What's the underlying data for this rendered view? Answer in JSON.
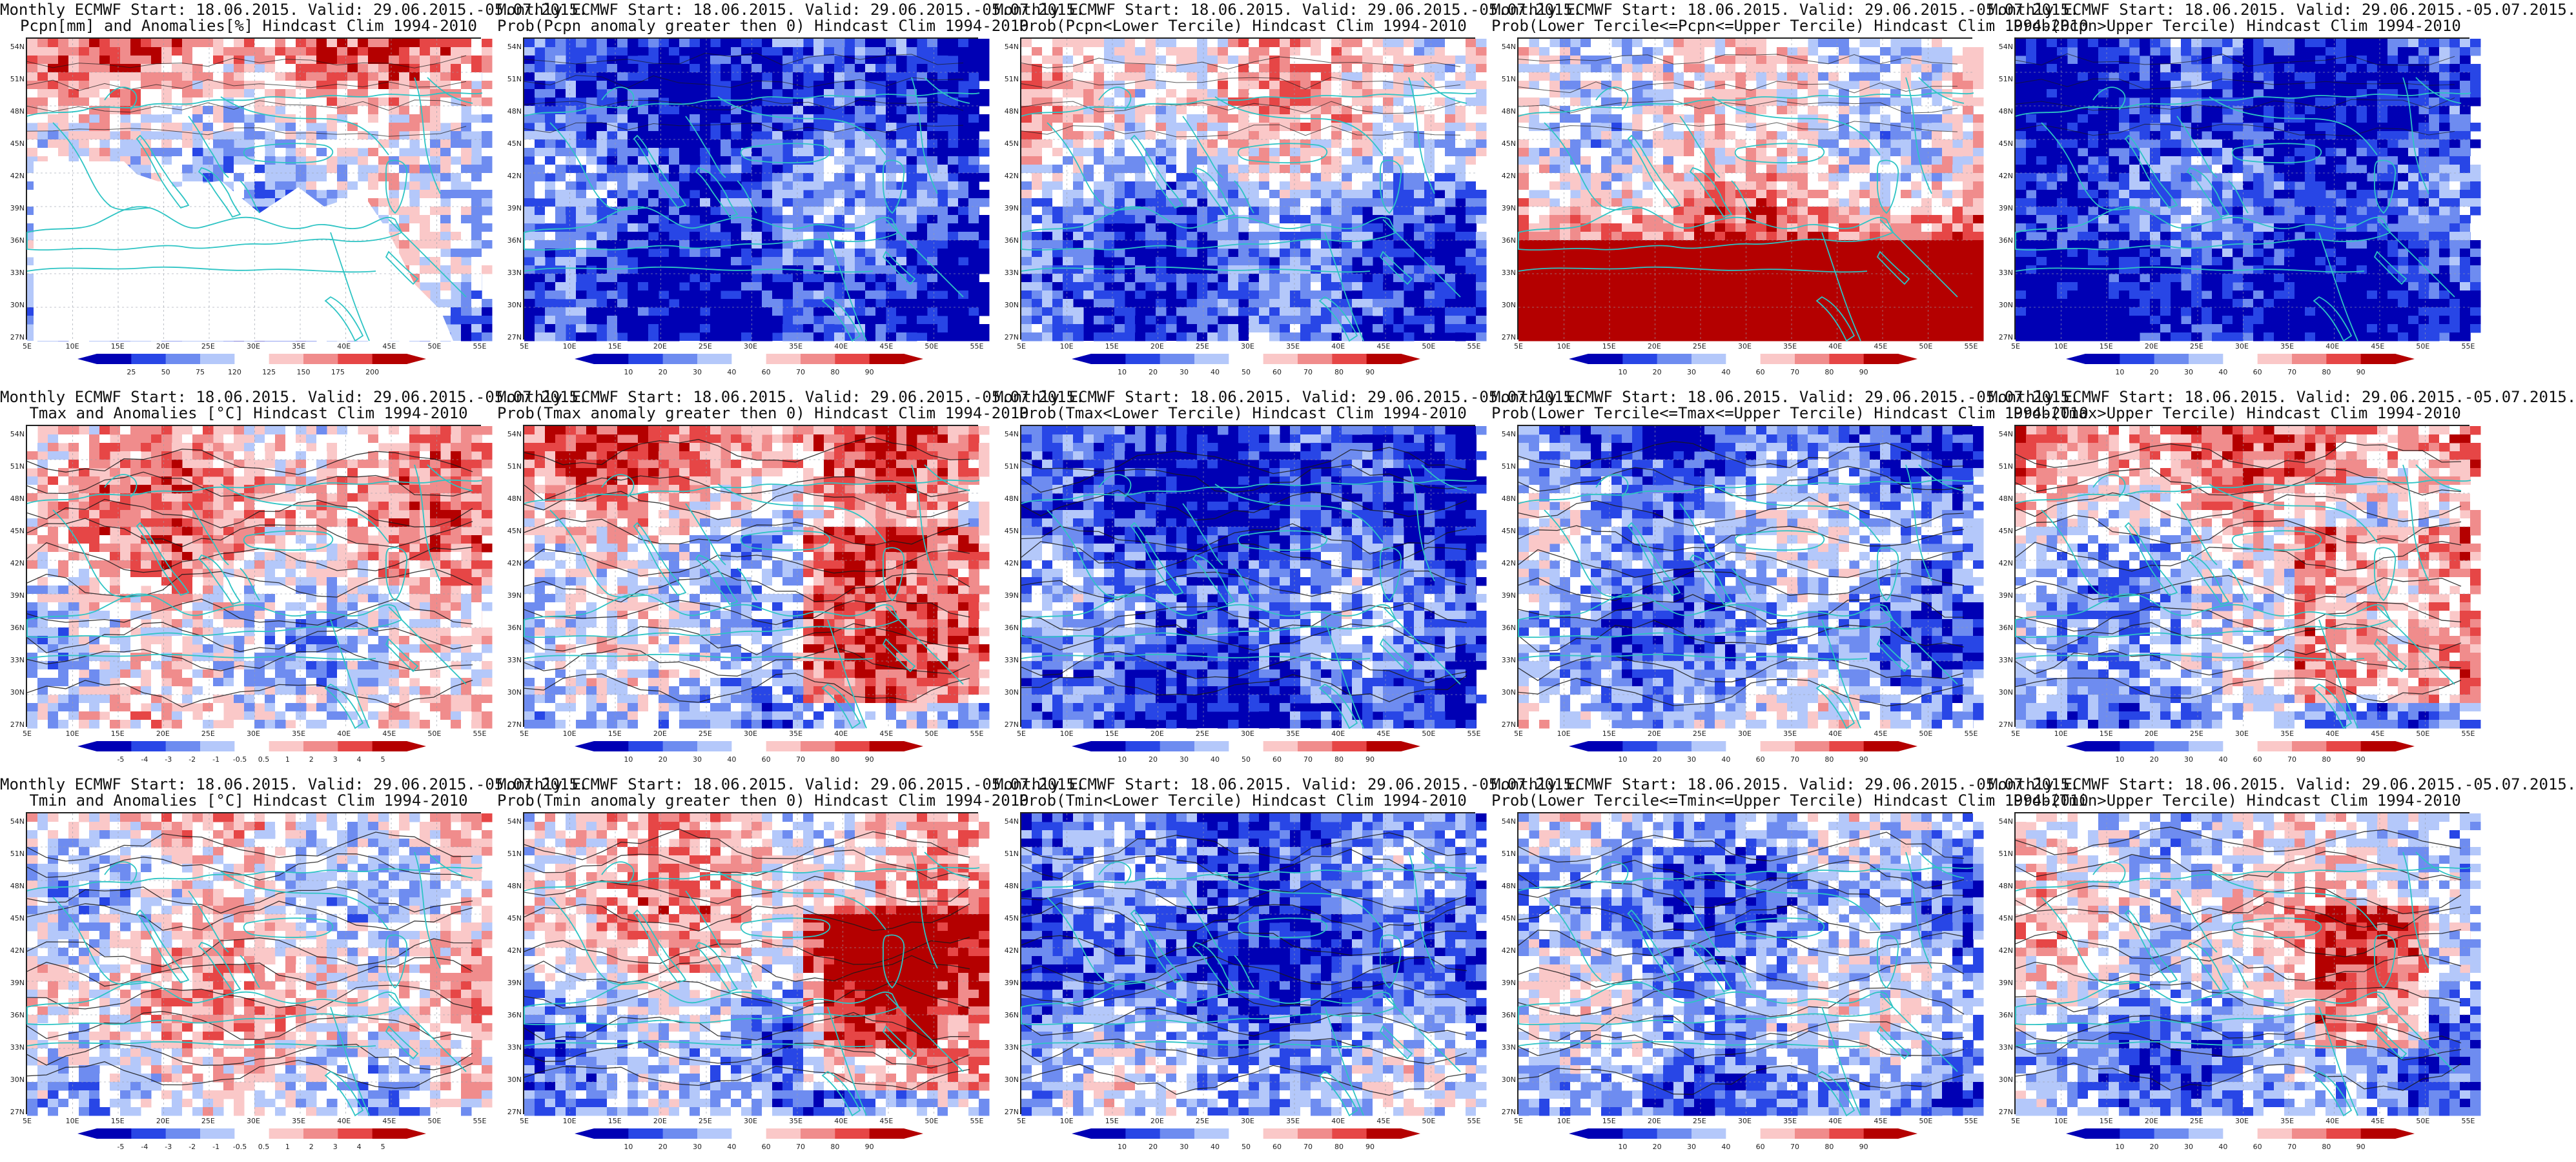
{
  "figure": {
    "panels": [
      {
        "title1": "Monthly ECMWF Start: 18.06.2015. Valid: 29.06.2015.-05.07.2015.",
        "title2": "Pcpn[mm] and Anomalies[%] Hindcast Clim 1994-2010",
        "colorbar": [
          "25",
          "50",
          "75",
          "120",
          "125",
          "150",
          "175",
          "200"
        ],
        "scheme": "pcpn_anom",
        "colors": [
          "#0000b4",
          "#2846e6",
          "#6e8cf0",
          "#b4c8fa",
          "#ffffff",
          "#fac8c8",
          "#f08c8c",
          "#e64646",
          "#b40000"
        ]
      },
      {
        "title1": "Monthly ECMWF Start: 18.06.2015. Valid: 29.06.2015.-05.07.2015.",
        "title2": "Prob(Pcpn anomaly greater then 0) Hindcast Clim 1994-2010",
        "colorbar": [
          "10",
          "20",
          "30",
          "40",
          "60",
          "70",
          "80",
          "90"
        ],
        "scheme": "prob",
        "colors": [
          "#0000b4",
          "#2846e6",
          "#6e8cf0",
          "#b4c8fa",
          "#ffffff",
          "#fac8c8",
          "#f08c8c",
          "#e64646",
          "#b40000"
        ]
      },
      {
        "title1": "Monthly ECMWF Start: 18.06.2015. Valid: 29.06.2015.-05.07.2015.",
        "title2": "Prob(Pcpn<Lower Tercile) Hindcast Clim 1994-2010",
        "colorbar": [
          "10",
          "20",
          "30",
          "40",
          "50",
          "60",
          "70",
          "80",
          "90"
        ],
        "scheme": "prob",
        "colors": [
          "#0000b4",
          "#2846e6",
          "#6e8cf0",
          "#b4c8fa",
          "#ffffff",
          "#fac8c8",
          "#f08c8c",
          "#e64646",
          "#b40000"
        ]
      },
      {
        "title1": "Monthly ECMWF Start: 18.06.2015. Valid: 29.06.2015.-05.07.2015.",
        "title2": "Prob(Lower Tercile<=Pcpn<=Upper Tercile) Hindcast Clim 1994-2010",
        "colorbar": [
          "10",
          "20",
          "30",
          "40",
          "60",
          "70",
          "80",
          "90"
        ],
        "scheme": "prob",
        "colors": [
          "#0000b4",
          "#2846e6",
          "#6e8cf0",
          "#b4c8fa",
          "#ffffff",
          "#fac8c8",
          "#f08c8c",
          "#e64646",
          "#b40000"
        ]
      },
      {
        "title1": "Monthly ECMWF Start: 18.06.2015. Valid: 29.06.2015.-05.07.2015.",
        "title2": "Prob(Pcpn>Upper Tercile) Hindcast Clim 1994-2010",
        "colorbar": [
          "10",
          "20",
          "30",
          "40",
          "60",
          "70",
          "80",
          "90"
        ],
        "scheme": "prob",
        "colors": [
          "#0000b4",
          "#2846e6",
          "#6e8cf0",
          "#b4c8fa",
          "#ffffff",
          "#fac8c8",
          "#f08c8c",
          "#e64646",
          "#b40000"
        ]
      },
      {
        "title1": "Monthly ECMWF Start: 18.06.2015. Valid: 29.06.2015.-05.07.2015.",
        "title2": "Tmax and Anomalies [°C] Hindcast Clim 1994-2010",
        "colorbar": [
          "-5",
          "-4",
          "-3",
          "-2",
          "-1",
          "-0.5",
          "0.5",
          "1",
          "2",
          "3",
          "4",
          "5"
        ],
        "scheme": "temp_anom",
        "colors": [
          "#0000b4",
          "#2846e6",
          "#6e8cf0",
          "#b4c8fa",
          "#ffffff",
          "#fac8c8",
          "#f08c8c",
          "#e64646",
          "#b40000"
        ]
      },
      {
        "title1": "Monthly ECMWF Start: 18.06.2015. Valid: 29.06.2015.-05.07.2015.",
        "title2": "Prob(Tmax anomaly greater then 0) Hindcast Clim 1994-2010",
        "colorbar": [
          "10",
          "20",
          "30",
          "40",
          "60",
          "70",
          "80",
          "90"
        ],
        "scheme": "prob",
        "colors": [
          "#0000b4",
          "#2846e6",
          "#6e8cf0",
          "#b4c8fa",
          "#ffffff",
          "#fac8c8",
          "#f08c8c",
          "#e64646",
          "#b40000"
        ]
      },
      {
        "title1": "Monthly ECMWF Start: 18.06.2015. Valid: 29.06.2015.-05.07.2015.",
        "title2": "Prob(Tmax<Lower Tercile) Hindcast Clim 1994-2010",
        "colorbar": [
          "10",
          "20",
          "30",
          "40",
          "50",
          "60",
          "70",
          "80",
          "90"
        ],
        "scheme": "prob",
        "colors": [
          "#0000b4",
          "#2846e6",
          "#6e8cf0",
          "#b4c8fa",
          "#ffffff",
          "#fac8c8",
          "#f08c8c",
          "#e64646",
          "#b40000"
        ]
      },
      {
        "title1": "Monthly ECMWF Start: 18.06.2015. Valid: 29.06.2015.-05.07.2015.",
        "title2": "Prob(Lower Tercile<=Tmax<=Upper Tercile) Hindcast Clim 1994-2010",
        "colorbar": [
          "10",
          "20",
          "30",
          "40",
          "60",
          "70",
          "80",
          "90"
        ],
        "scheme": "prob",
        "colors": [
          "#0000b4",
          "#2846e6",
          "#6e8cf0",
          "#b4c8fa",
          "#ffffff",
          "#fac8c8",
          "#f08c8c",
          "#e64646",
          "#b40000"
        ]
      },
      {
        "title1": "Monthly ECMWF Start: 18.06.2015. Valid: 29.06.2015.-05.07.2015.",
        "title2": "Prob(Tmax>Upper Tercile) Hindcast Clim 1994-2010",
        "colorbar": [
          "10",
          "20",
          "30",
          "40",
          "60",
          "70",
          "80",
          "90"
        ],
        "scheme": "prob",
        "colors": [
          "#0000b4",
          "#2846e6",
          "#6e8cf0",
          "#b4c8fa",
          "#ffffff",
          "#fac8c8",
          "#f08c8c",
          "#e64646",
          "#b40000"
        ]
      },
      {
        "title1": "Monthly ECMWF Start: 18.06.2015. Valid: 29.06.2015.-05.07.2015.",
        "title2": "Tmin and Anomalies [°C] Hindcast Clim 1994-2010",
        "colorbar": [
          "-5",
          "-4",
          "-3",
          "-2",
          "-1",
          "-0.5",
          "0.5",
          "1",
          "2",
          "3",
          "4",
          "5"
        ],
        "scheme": "temp_anom",
        "colors": [
          "#0000b4",
          "#2846e6",
          "#6e8cf0",
          "#b4c8fa",
          "#ffffff",
          "#fac8c8",
          "#f08c8c",
          "#e64646",
          "#b40000"
        ]
      },
      {
        "title1": "Monthly ECMWF Start: 18.06.2015. Valid: 29.06.2015.-05.07.2015.",
        "title2": "Prob(Tmin anomaly greater then 0) Hindcast Clim 1994-2010",
        "colorbar": [
          "10",
          "20",
          "30",
          "40",
          "60",
          "70",
          "80",
          "90"
        ],
        "scheme": "prob",
        "colors": [
          "#0000b4",
          "#2846e6",
          "#6e8cf0",
          "#b4c8fa",
          "#ffffff",
          "#fac8c8",
          "#f08c8c",
          "#e64646",
          "#b40000"
        ]
      },
      {
        "title1": "Monthly ECMWF Start: 18.06.2015. Valid: 29.06.2015.-05.07.2015.",
        "title2": "Prob(Tmin<Lower Tercile) Hindcast Clim 1994-2010",
        "colorbar": [
          "10",
          "20",
          "30",
          "40",
          "50",
          "60",
          "70",
          "80",
          "90"
        ],
        "scheme": "prob",
        "colors": [
          "#0000b4",
          "#2846e6",
          "#6e8cf0",
          "#b4c8fa",
          "#ffffff",
          "#fac8c8",
          "#f08c8c",
          "#e64646",
          "#b40000"
        ]
      },
      {
        "title1": "Monthly ECMWF Start: 18.06.2015. Valid: 29.06.2015.-05.07.2015.",
        "title2": "Prob(Lower Tercile<=Tmin<=Upper Tercile) Hindcast Clim 1994-2010",
        "colorbar": [
          "10",
          "20",
          "30",
          "40",
          "60",
          "70",
          "80",
          "90"
        ],
        "scheme": "prob",
        "colors": [
          "#0000b4",
          "#2846e6",
          "#6e8cf0",
          "#b4c8fa",
          "#ffffff",
          "#fac8c8",
          "#f08c8c",
          "#e64646",
          "#b40000"
        ]
      },
      {
        "title1": "Monthly ECMWF Start: 18.06.2015. Valid: 29.06.2015.-05.07.2015.",
        "title2": "Prob(Tmin>Upper Tercile) Hindcast Clim 1994-2010",
        "colorbar": [
          "10",
          "20",
          "30",
          "40",
          "60",
          "70",
          "80",
          "90"
        ],
        "scheme": "prob",
        "colors": [
          "#0000b4",
          "#2846e6",
          "#6e8cf0",
          "#b4c8fa",
          "#ffffff",
          "#fac8c8",
          "#f08c8c",
          "#e64646",
          "#b40000"
        ]
      }
    ],
    "lat_ticks": [
      "54N",
      "51N",
      "48N",
      "45N",
      "42N",
      "39N",
      "36N",
      "33N",
      "30N",
      "27N"
    ],
    "lon_ticks": [
      "5E",
      "10E",
      "15E",
      "20E",
      "25E",
      "30E",
      "35E",
      "40E",
      "45E",
      "50E",
      "55E"
    ],
    "colors": {
      "coast": "#2ec4c4",
      "contour": "#1a1a1a",
      "grid": "#9aa0aa"
    }
  }
}
